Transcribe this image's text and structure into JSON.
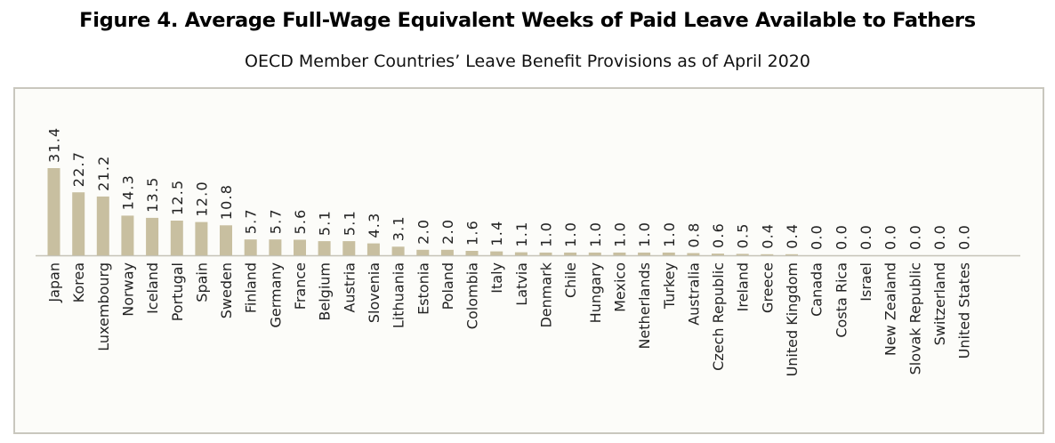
{
  "title": "Figure 4. Average Full-Wage Equivalent Weeks of Paid Leave Available to Fathers",
  "subtitle": "OECD Member Countries’ Leave Benefit Provisions as of April 2020",
  "colors": {
    "bar": "#c8bfa0",
    "axis": "#c5c3b8",
    "text": "#222222",
    "panel_border": "#c9c7be"
  },
  "chart_data": {
    "type": "bar",
    "title": "Figure 4. Average Full-Wage Equivalent Weeks of Paid Leave Available to Fathers",
    "subtitle": "OECD Member Countries’ Leave Benefit Provisions as of April 2020",
    "xlabel": "",
    "ylabel": "",
    "grid": false,
    "data_labels": true,
    "categories": [
      "Japan",
      "Korea",
      "Luxembourg",
      "Norway",
      "Iceland",
      "Portugal",
      "Spain",
      "Sweden",
      "Finland",
      "Germany",
      "France",
      "Belgium",
      "Austria",
      "Slovenia",
      "Lithuania",
      "Estonia",
      "Poland",
      "Colombia",
      "Italy",
      "Latvia",
      "Denmark",
      "Chile",
      "Hungary",
      "Mexico",
      "Netherlands",
      "Turkey",
      "Australia",
      "Czech Republic",
      "Ireland",
      "Greece",
      "United Kingdom",
      "Canada",
      "Costa Rica",
      "Israel",
      "New Zealand",
      "Slovak Republic",
      "Switzerland",
      "United States"
    ],
    "values": [
      31.4,
      22.7,
      21.2,
      14.3,
      13.5,
      12.5,
      12.0,
      10.8,
      5.7,
      5.7,
      5.6,
      5.1,
      5.1,
      4.3,
      3.1,
      2.0,
      2.0,
      1.6,
      1.4,
      1.1,
      1.0,
      1.0,
      1.0,
      1.0,
      1.0,
      1.0,
      0.8,
      0.6,
      0.5,
      0.4,
      0.4,
      0.0,
      0.0,
      0.0,
      0.0,
      0.0,
      0.0,
      0.0
    ],
    "value_labels": [
      "31.4",
      "22.7",
      "21.2",
      "14.3",
      "13.5",
      "12.5",
      "12.0",
      "10.8",
      "5.7",
      "5.7",
      "5.6",
      "5.1",
      "5.1",
      "4.3",
      "3.1",
      "2.0",
      "2.0",
      "1.6",
      "1.4",
      "1.1",
      "1.0",
      "1.0",
      "1.0",
      "1.0",
      "1.0",
      "1.0",
      "0.8",
      "0.6",
      "0.5",
      "0.4",
      "0.4",
      "0.0",
      "0.0",
      "0.0",
      "0.0",
      "0.0",
      "0.0",
      "0.0"
    ]
  }
}
